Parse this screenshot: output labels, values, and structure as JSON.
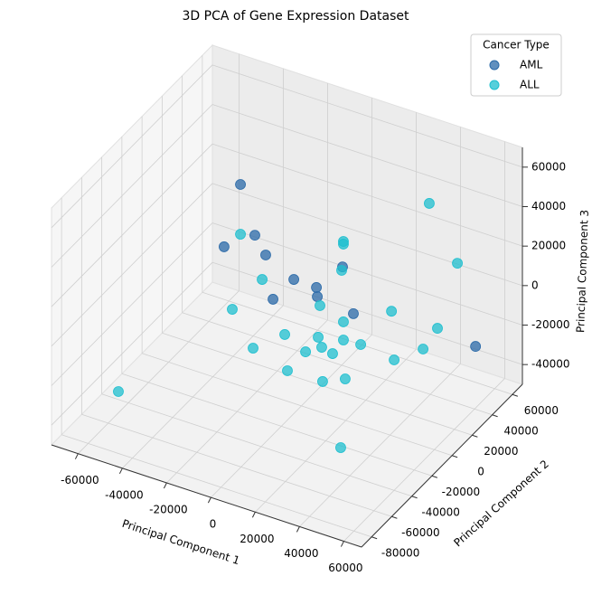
{
  "chart_data": {
    "type": "scatter3d",
    "title": "3D PCA of Gene Expression Dataset",
    "xlabel": "Principal Component 1",
    "ylabel": "Principal Component 2",
    "zlabel": "Principal Component 3",
    "legend_title": "Cancer Type",
    "legend_loc": "upper right",
    "grid": true,
    "xlim": [
      -72000,
      68000
    ],
    "ylim": [
      -90000,
      70000
    ],
    "zlim": [
      -50000,
      70000
    ],
    "xticks": [
      -60000,
      -40000,
      -20000,
      0,
      20000,
      40000,
      60000
    ],
    "yticks": [
      -80000,
      -60000,
      -40000,
      -20000,
      0,
      20000,
      40000,
      60000
    ],
    "zticks": [
      -40000,
      -20000,
      0,
      20000,
      40000,
      60000
    ],
    "series": [
      {
        "name": "AML",
        "color": "#2b6aa8",
        "x": [
          -23000,
          -16500,
          -30400,
          -11600,
          23100,
          1100,
          11300,
          11700,
          -8300,
          28000,
          65000
        ],
        "y": [
          -10000,
          -10000,
          -10000,
          -10000,
          -10000,
          -10000,
          -10000,
          -10000,
          -10000,
          -10000,
          30000
        ],
        "z": [
          58800,
          35500,
          24500,
          27300,
          34100,
          19600,
          19300,
          14800,
          6100,
          12200,
          -11300
        ]
      },
      {
        "name": "ALL",
        "color": "#1fbfcf",
        "x": [
          -23000,
          23500,
          23500,
          44100,
          56800,
          22700,
          -13200,
          12900,
          -26700,
          45200,
          23500,
          47800,
          -3000,
          12100,
          23500,
          -17300,
          31300,
          6400,
          13700,
          18600,
          41300,
          46400,
          -1800,
          14100,
          24300,
          -63600,
          36800
        ],
        "y": [
          -10000,
          -10000,
          -10000,
          30000,
          30000,
          -10000,
          -10000,
          -10000,
          -10000,
          -10000,
          -10000,
          30000,
          -10000,
          -10000,
          -10000,
          -10000,
          -10000,
          -10000,
          -10000,
          -10000,
          30000,
          -10000,
          -10000,
          -10000,
          -10000,
          -42000,
          -42000
        ],
        "z": [
          33600,
          47100,
          45800,
          53400,
          27800,
          32200,
          14300,
          10700,
          -5800,
          19800,
          6400,
          -8500,
          -9800,
          -5600,
          -2800,
          -22000,
          -2200,
          -15100,
          -10100,
          -11500,
          -21400,
          -4400,
          -27700,
          -27300,
          -22200,
          -44600,
          -35900
        ]
      }
    ]
  }
}
